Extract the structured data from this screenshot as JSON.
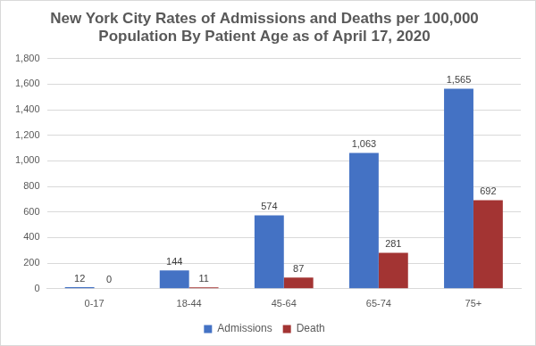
{
  "chart_data": {
    "type": "bar",
    "title": [
      "New York City Rates of Admissions and Deaths per 100,000",
      "Population By Patient Age as of April 17, 2020"
    ],
    "categories": [
      "0-17",
      "18-44",
      "45-64",
      "65-74",
      "75+"
    ],
    "series": [
      {
        "name": "Admissions",
        "color": "#4472c4",
        "values": [
          12,
          144,
          574,
          1063,
          1565
        ],
        "value_labels": [
          "12",
          "144",
          "574",
          "1,063",
          "1,565"
        ]
      },
      {
        "name": "Death",
        "color": "#a33433",
        "values": [
          0,
          11,
          87,
          281,
          692
        ]
      }
    ],
    "ylim": [
      0,
      1800
    ],
    "yticks": [
      0,
      200,
      400,
      600,
      800,
      {
        "value": 1000,
        "label": "1,000"
      },
      {
        "value": 1200,
        "label": "1,200"
      },
      {
        "value": 1400,
        "label": "1,400"
      },
      {
        "value": 1600,
        "label": "1,600"
      },
      {
        "value": 1800,
        "label": "1,800"
      }
    ],
    "grid": true,
    "legend": "bottom",
    "data_labels": true
  }
}
